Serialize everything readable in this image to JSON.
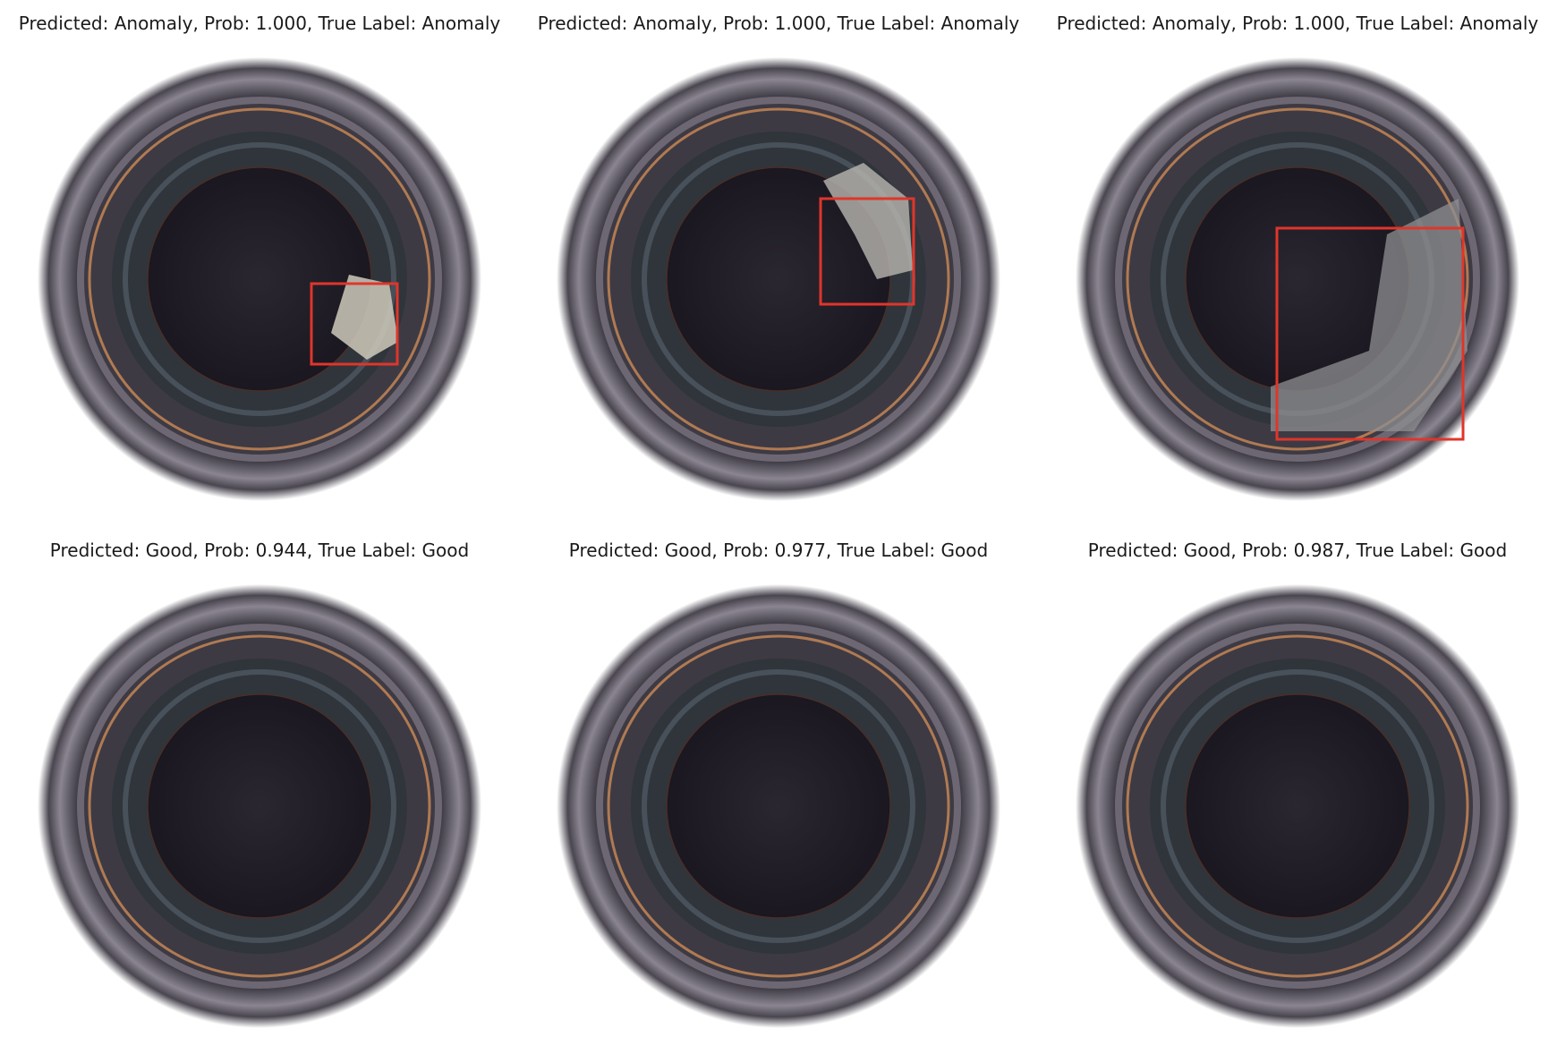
{
  "panels": [
    {
      "title": "Predicted: Anomaly, Prob: 1.000, True Label: Anomaly",
      "predicted": "Anomaly",
      "prob": 1.0,
      "true_label": "Anomaly",
      "box": true
    },
    {
      "title": "Predicted: Anomaly, Prob: 1.000, True Label: Anomaly",
      "predicted": "Anomaly",
      "prob": 1.0,
      "true_label": "Anomaly",
      "box": true
    },
    {
      "title": "Predicted: Anomaly, Prob: 1.000, True Label: Anomaly",
      "predicted": "Anomaly",
      "prob": 1.0,
      "true_label": "Anomaly",
      "box": true
    },
    {
      "title": "Predicted: Good, Prob: 0.944, True Label: Good",
      "predicted": "Good",
      "prob": 0.944,
      "true_label": "Good",
      "box": false
    },
    {
      "title": "Predicted: Good, Prob: 0.977, True Label: Good",
      "predicted": "Good",
      "prob": 0.977,
      "true_label": "Good",
      "box": false
    },
    {
      "title": "Predicted: Good, Prob: 0.987, True Label: Good",
      "predicted": "Good",
      "prob": 0.987,
      "true_label": "Good",
      "box": false
    }
  ],
  "colors": {
    "box": "#e0352b",
    "copper": "#b07a52",
    "bore": "#1f1b26"
  }
}
